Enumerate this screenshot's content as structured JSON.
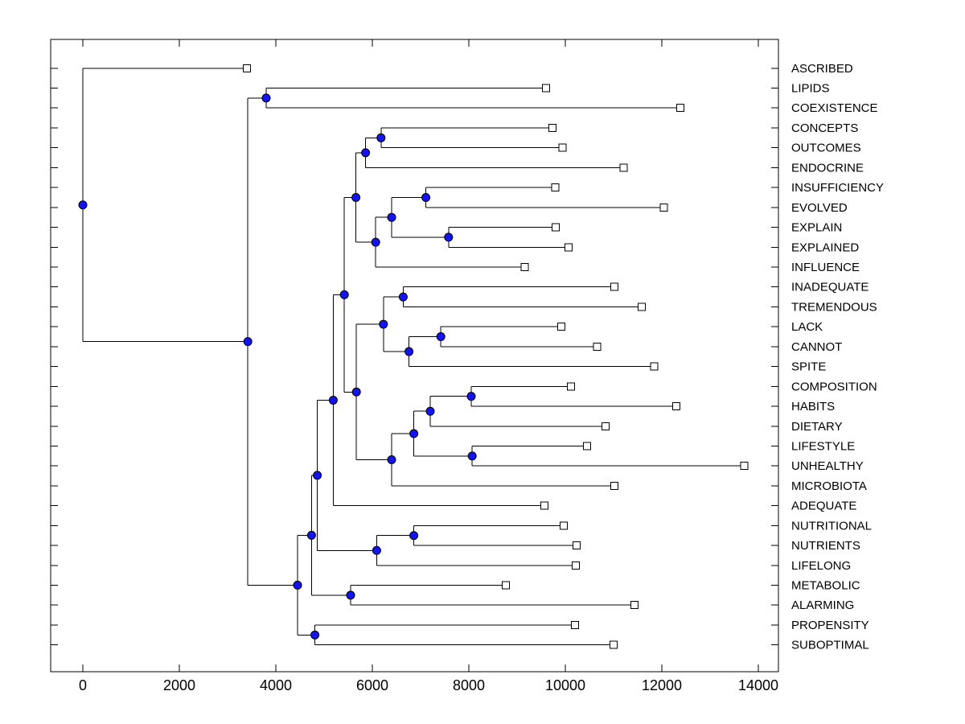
{
  "figure": {
    "title": "",
    "background": "#ffffff"
  },
  "colors": {
    "line": "#000000",
    "node_fill": "#1414f0",
    "node_edge": "#000000",
    "leaf_fill": "#ffffff",
    "leaf_edge": "#000000",
    "text": "#000000"
  },
  "chart_data": {
    "type": "dendrogram",
    "orientation": "left-to-right",
    "title": "",
    "xlabel": "",
    "ylabel": "",
    "grid": false,
    "legend": null,
    "xlim": [
      -667,
      14417
    ],
    "x_tick_values": [
      0,
      2000,
      4000,
      6000,
      8000,
      10000,
      12000,
      14000
    ],
    "x_tick_labels": [
      "0",
      "2000",
      "4000",
      "6000",
      "8000",
      "10000",
      "12000",
      "14000"
    ],
    "leaf_count": 30,
    "tree": {
      "x": 0,
      "children": [
        {
          "label": "ASCRIBED",
          "x": 3400
        },
        {
          "x": 3420,
          "children": [
            {
              "x": 3800,
              "children": [
                {
                  "label": "LIPIDS",
                  "x": 9600
                },
                {
                  "label": "COEXISTENCE",
                  "x": 12380
                }
              ]
            },
            {
              "x": 4450,
              "children": [
                {
                  "x": 4740,
                  "children": [
                    {
                      "x": 4860,
                      "children": [
                        {
                          "x": 5190,
                          "children": [
                            {
                              "x": 5420,
                              "children": [
                                {
                                  "x": 5660,
                                  "children": [
                                    {
                                      "x": 5860,
                                      "children": [
                                        {
                                          "x": 6180,
                                          "children": [
                                            {
                                              "label": "CONCEPTS",
                                              "x": 9730
                                            },
                                            {
                                              "label": "OUTCOMES",
                                              "x": 9940
                                            }
                                          ]
                                        },
                                        {
                                          "label": "ENDOCRINE",
                                          "x": 11210
                                        }
                                      ]
                                    },
                                    {
                                      "x": 6070,
                                      "children": [
                                        {
                                          "x": 6400,
                                          "children": [
                                            {
                                              "x": 7110,
                                              "children": [
                                                {
                                                  "label": "INSUFFICIENCY",
                                                  "x": 9790
                                                },
                                                {
                                                  "label": "EVOLVED",
                                                  "x": 12040
                                                }
                                              ]
                                            },
                                            {
                                              "x": 7580,
                                              "children": [
                                                {
                                                  "label": "EXPLAIN",
                                                  "x": 9800
                                                },
                                                {
                                                  "label": "EXPLAINED",
                                                  "x": 10070
                                                }
                                              ]
                                            }
                                          ]
                                        },
                                        {
                                          "label": "INFLUENCE",
                                          "x": 9160
                                        }
                                      ]
                                    }
                                  ]
                                },
                                {
                                  "x": 5670,
                                  "children": [
                                    {
                                      "x": 6230,
                                      "children": [
                                        {
                                          "x": 6640,
                                          "children": [
                                            {
                                              "label": "INADEQUATE",
                                              "x": 11020
                                            },
                                            {
                                              "label": "TREMENDOUS",
                                              "x": 11580
                                            }
                                          ]
                                        },
                                        {
                                          "x": 6760,
                                          "children": [
                                            {
                                              "x": 7420,
                                              "children": [
                                                {
                                                  "label": "LACK",
                                                  "x": 9920
                                                },
                                                {
                                                  "label": "CANNOT",
                                                  "x": 10660
                                                }
                                              ]
                                            },
                                            {
                                              "label": "SPITE",
                                              "x": 11840
                                            }
                                          ]
                                        }
                                      ]
                                    },
                                    {
                                      "x": 6400,
                                      "children": [
                                        {
                                          "x": 6860,
                                          "children": [
                                            {
                                              "x": 7200,
                                              "children": [
                                                {
                                                  "x": 8050,
                                                  "children": [
                                                    {
                                                      "label": "COMPOSITION",
                                                      "x": 10120
                                                    },
                                                    {
                                                      "label": "HABITS",
                                                      "x": 12300
                                                    }
                                                  ]
                                                },
                                                {
                                                  "label": "DIETARY",
                                                  "x": 10830
                                                }
                                              ]
                                            },
                                            {
                                              "x": 8070,
                                              "children": [
                                                {
                                                  "label": "LIFESTYLE",
                                                  "x": 10450
                                                },
                                                {
                                                  "label": "UNHEALTHY",
                                                  "x": 13710
                                                }
                                              ]
                                            }
                                          ]
                                        },
                                        {
                                          "label": "MICROBIOTA",
                                          "x": 11020
                                        }
                                      ]
                                    }
                                  ]
                                }
                              ]
                            },
                            {
                              "label": "ADEQUATE",
                              "x": 9570
                            }
                          ]
                        },
                        {
                          "x": 6090,
                          "children": [
                            {
                              "x": 6860,
                              "children": [
                                {
                                  "label": "NUTRITIONAL",
                                  "x": 9970
                                },
                                {
                                  "label": "NUTRIENTS",
                                  "x": 10230
                                }
                              ]
                            },
                            {
                              "label": "LIFELONG",
                              "x": 10220
                            }
                          ]
                        }
                      ]
                    },
                    {
                      "x": 5550,
                      "children": [
                        {
                          "label": "METABOLIC",
                          "x": 8770
                        },
                        {
                          "label": "ALARMING",
                          "x": 11430
                        }
                      ]
                    }
                  ]
                },
                {
                  "x": 4810,
                  "children": [
                    {
                      "label": "PROPENSITY",
                      "x": 10200
                    },
                    {
                      "label": "SUBOPTIMAL",
                      "x": 11000
                    }
                  ]
                }
              ]
            }
          ]
        }
      ]
    }
  }
}
